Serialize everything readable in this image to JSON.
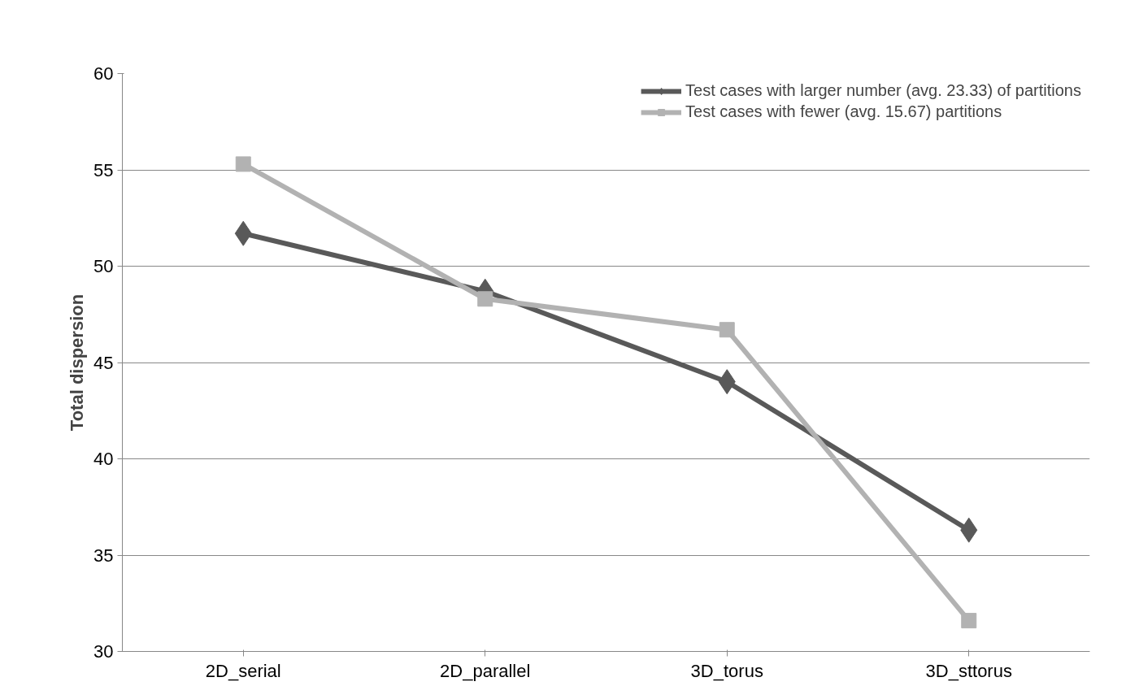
{
  "chart_data": {
    "type": "line",
    "ylabel": "Total dispersion",
    "categories": [
      "2D_serial",
      "2D_parallel",
      "3D_torus",
      "3D_sttorus"
    ],
    "series": [
      {
        "name": "Test cases with larger number (avg. 23.33) of partitions",
        "color": "#595959",
        "marker": "diamond",
        "values": [
          51.7,
          48.7,
          44.0,
          36.3
        ]
      },
      {
        "name": "Test cases with fewer (avg. 15.67) partitions",
        "color": "#b2b2b2",
        "marker": "square",
        "values": [
          55.3,
          48.3,
          46.7,
          31.6
        ]
      }
    ],
    "ylim": [
      30,
      60
    ],
    "yticks": [
      30,
      35,
      40,
      45,
      50,
      55,
      60
    ],
    "grid": "y",
    "legend": "top right"
  }
}
